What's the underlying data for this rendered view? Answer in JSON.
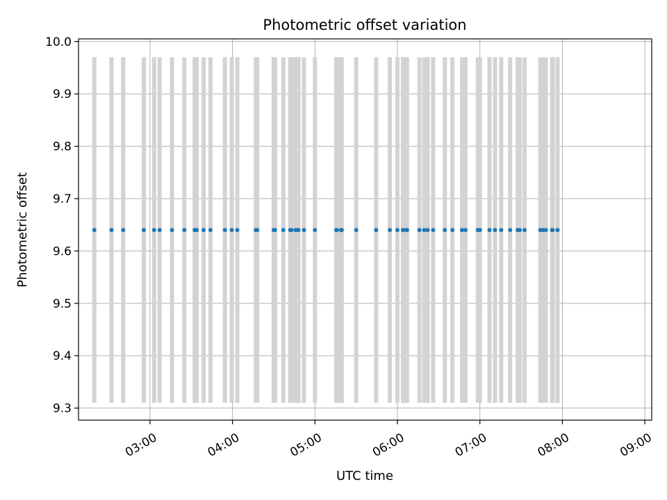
{
  "chart_data": {
    "type": "scatter",
    "title": "Photometric offset variation",
    "xlabel": "UTC time",
    "ylabel": "Photometric offset",
    "x_tick_labels": [
      "03:00",
      "04:00",
      "05:00",
      "06:00",
      "07:00",
      "08:00",
      "09:00"
    ],
    "x_tick_minutes": [
      180,
      240,
      300,
      360,
      420,
      480,
      540
    ],
    "y_ticks": [
      9.3,
      9.4,
      9.5,
      9.6,
      9.7,
      9.8,
      9.9,
      10.0
    ],
    "y_tick_labels": [
      "9.3",
      "9.4",
      "9.5",
      "9.6",
      "9.7",
      "9.8",
      "9.9",
      "10.0"
    ],
    "xlim_minutes": [
      128,
      545
    ],
    "ylim": [
      9.277,
      10.005
    ],
    "grid": true,
    "error_bar_range": [
      9.31,
      9.97
    ],
    "y_value": 9.64,
    "x_minutes": [
      139.5,
      152,
      160.5,
      175.5,
      183,
      187,
      196,
      205,
      212.5,
      214,
      219,
      224,
      234.5,
      239.5,
      243.5,
      257,
      258,
      270,
      271,
      277,
      282,
      283,
      286,
      287,
      288,
      292,
      300,
      315.5,
      316,
      319,
      319.5,
      330,
      344.5,
      354.5,
      360,
      364,
      366.5,
      367,
      376,
      379.5,
      382,
      386,
      394.5,
      400,
      407,
      409.5,
      418.5,
      420,
      427,
      431,
      435.5,
      442,
      447.5,
      449,
      452.5,
      464,
      466,
      468,
      472.5,
      473,
      476.5
    ],
    "colors": {
      "points": "#1f77b4",
      "error_bars": "#d3d3d3",
      "grid": "#b0b0b0",
      "axes": "#000000"
    }
  }
}
